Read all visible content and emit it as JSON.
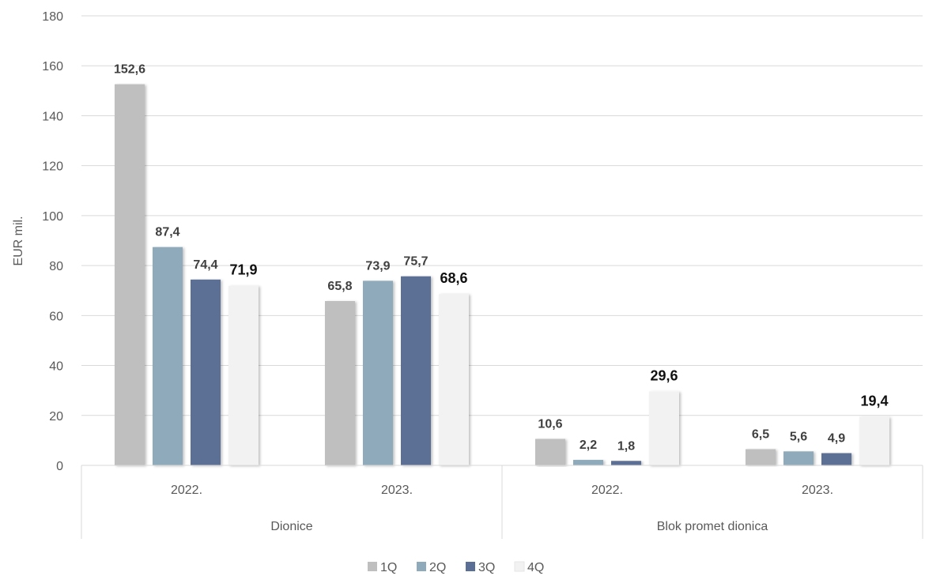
{
  "chart_data": {
    "type": "bar",
    "ylabel": "EUR mil.",
    "ylim": [
      0,
      180
    ],
    "yticks": [
      0,
      20,
      40,
      60,
      80,
      100,
      120,
      140,
      160,
      180
    ],
    "grid": true,
    "legend_position": "bottom",
    "groups": [
      {
        "label": "Dionice",
        "categories": [
          "2022.",
          "2023."
        ]
      },
      {
        "label": "Blok promet dionica",
        "categories": [
          "2022.",
          "2023."
        ]
      }
    ],
    "categories": [
      "2022.",
      "2023.",
      "2022.",
      "2023."
    ],
    "series": [
      {
        "name": "1Q",
        "color": "#bfbfbf",
        "values": [
          152.6,
          65.8,
          10.6,
          6.5
        ],
        "labels": [
          "152,6",
          "65,8",
          "10,6",
          "6,5"
        ]
      },
      {
        "name": "2Q",
        "color": "#8eaabb",
        "values": [
          87.4,
          73.9,
          2.2,
          5.6
        ],
        "labels": [
          "87,4",
          "73,9",
          "2,2",
          "5,6"
        ]
      },
      {
        "name": "3Q",
        "color": "#5b6f96",
        "values": [
          74.4,
          75.7,
          1.8,
          4.9
        ],
        "labels": [
          "74,4",
          "75,7",
          "1,8",
          "4,9"
        ]
      },
      {
        "name": "4Q",
        "color": "#f2f2f2",
        "values": [
          71.9,
          68.6,
          29.6,
          19.4
        ],
        "labels": [
          "71,9",
          "68,6",
          "29,6",
          "19,4"
        ]
      }
    ]
  }
}
